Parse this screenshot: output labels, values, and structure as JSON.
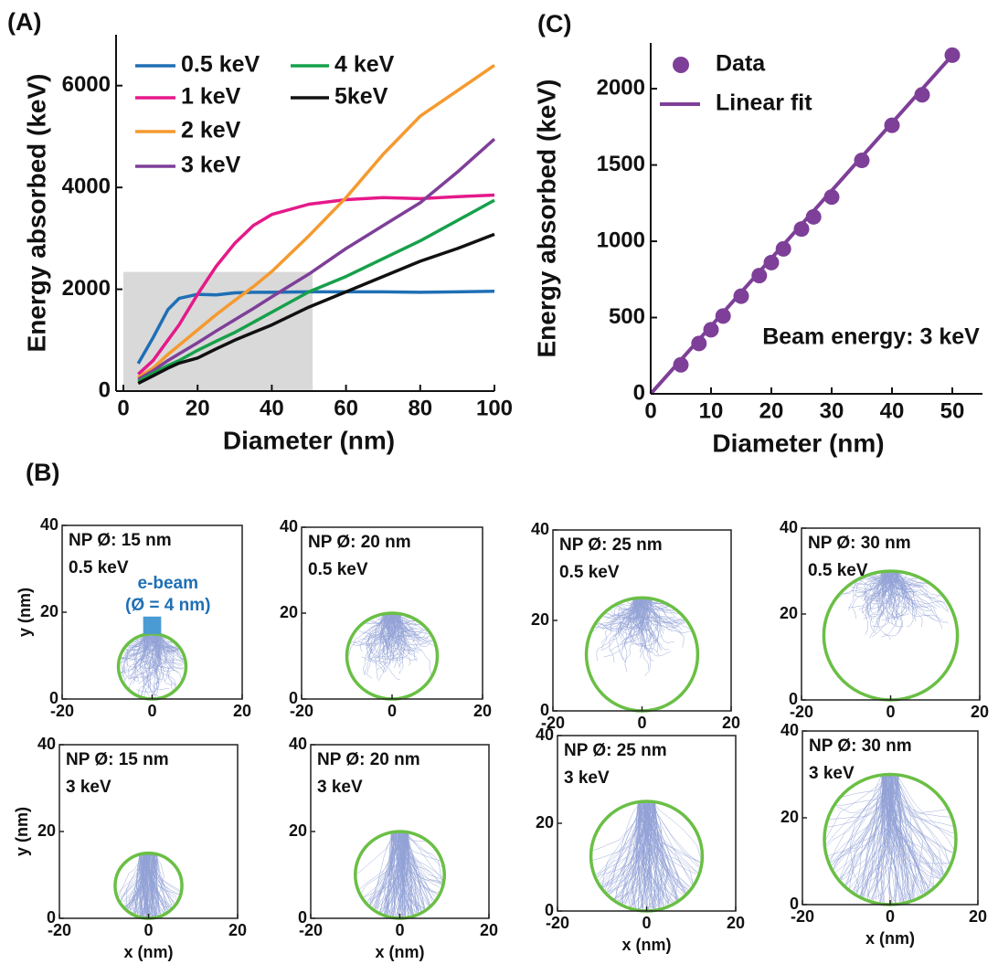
{
  "chart_data": [
    {
      "type": "line",
      "label": "(A)",
      "xlabel": "Diameter (nm)",
      "ylabel": "Energy absorbed (keV)",
      "xlim": [
        0,
        100
      ],
      "ylim": [
        0,
        7000
      ],
      "xticks": [
        0,
        20,
        40,
        60,
        80,
        100
      ],
      "yticks": [
        0,
        2000,
        4000,
        6000
      ],
      "legend": "upper left",
      "highlight": {
        "xlim": [
          0,
          51
        ],
        "ylim": [
          0,
          2340
        ],
        "color": "#d9d9d9"
      },
      "x": [
        4,
        8,
        12,
        15,
        20,
        25,
        30,
        35,
        40,
        50,
        60,
        70,
        80,
        90,
        100
      ],
      "series": [
        {
          "name": "0.5 keV",
          "color": "#1f6fb5",
          "values": [
            540,
            1050,
            1600,
            1820,
            1900,
            1890,
            1930,
            1940,
            1940,
            1950,
            1950,
            1950,
            1940,
            1950,
            1960
          ]
        },
        {
          "name": "1 keV",
          "color": "#e5198a",
          "values": [
            330,
            600,
            1000,
            1300,
            1900,
            2450,
            2900,
            3250,
            3470,
            3670,
            3760,
            3800,
            3780,
            3820,
            3850
          ]
        },
        {
          "name": "2 keV",
          "color": "#f59a2f",
          "values": [
            270,
            450,
            720,
            900,
            1200,
            1500,
            1780,
            2050,
            2350,
            3050,
            3800,
            4650,
            5400,
            5900,
            6400
          ]
        },
        {
          "name": "3 keV",
          "color": "#7e3f98",
          "values": [
            230,
            400,
            600,
            730,
            950,
            1180,
            1400,
            1620,
            1850,
            2300,
            2800,
            3250,
            3700,
            4300,
            4950
          ]
        },
        {
          "name": "4 keV",
          "color": "#17a04b",
          "values": [
            190,
            350,
            500,
            600,
            800,
            980,
            1150,
            1350,
            1550,
            1950,
            2250,
            2600,
            2950,
            3350,
            3750
          ]
        },
        {
          "name": "5keV",
          "color": "#111111",
          "values": [
            150,
            300,
            450,
            550,
            650,
            830,
            1000,
            1150,
            1300,
            1650,
            1950,
            2250,
            2550,
            2800,
            3080
          ]
        }
      ]
    },
    {
      "type": "scatter",
      "label": "(C)",
      "xlabel": "Diameter (nm)",
      "ylabel": "Energy absorbed (keV)",
      "xlim": [
        0,
        55
      ],
      "ylim": [
        0,
        2300
      ],
      "xticks": [
        0,
        10,
        20,
        30,
        40,
        50
      ],
      "yticks": [
        0,
        500,
        1000,
        1500,
        2000
      ],
      "legend": "upper left",
      "name": "Data",
      "color": "#7e3f98",
      "x": [
        5,
        8,
        10,
        12,
        15,
        18,
        20,
        22,
        25,
        27,
        30,
        35,
        40,
        45,
        50
      ],
      "values": [
        190,
        330,
        420,
        510,
        640,
        775,
        860,
        950,
        1080,
        1160,
        1290,
        1530,
        1760,
        1960,
        2220
      ],
      "fit": {
        "name": "Linear fit",
        "x": [
          0,
          50
        ],
        "values": [
          0,
          2220
        ]
      },
      "annotation": "Beam energy: 3 keV"
    },
    {
      "type": "trajectory",
      "label": "(B)",
      "annotation": [
        "NP Ø: 15 nm",
        "0.5 keV"
      ],
      "ylabel": "y (nm)",
      "xlim": [
        -20,
        20
      ],
      "ylim": [
        0,
        40
      ],
      "xticks": [
        -20,
        0,
        20
      ],
      "yticks": [
        0,
        20,
        40
      ],
      "circle": {
        "center": [
          0,
          7.5
        ],
        "radius": 7.5,
        "color": "#6abf45"
      },
      "beam": {
        "xlim": [
          -2,
          2
        ],
        "ylim": [
          15,
          19
        ],
        "color": "#4a9ad4",
        "label": [
          "e-beam",
          "(Ø = 4 nm)"
        ]
      }
    },
    {
      "type": "trajectory",
      "annotation": [
        "NP Ø: 20 nm",
        "0.5 keV"
      ],
      "xlim": [
        -20,
        20
      ],
      "ylim": [
        0,
        40
      ],
      "xticks": [
        -20,
        0,
        20
      ],
      "yticks": [
        0,
        20,
        40
      ],
      "circle": {
        "center": [
          0,
          10
        ],
        "radius": 10,
        "color": "#6abf45"
      }
    },
    {
      "type": "trajectory",
      "annotation": [
        "NP Ø: 25 nm",
        "0.5 keV"
      ],
      "xlim": [
        -20,
        20
      ],
      "ylim": [
        0,
        40
      ],
      "xticks": [
        -20,
        0,
        20
      ],
      "yticks": [
        0,
        20,
        40
      ],
      "circle": {
        "center": [
          0,
          12.5
        ],
        "radius": 12.5,
        "color": "#6abf45"
      }
    },
    {
      "type": "trajectory",
      "annotation": [
        "NP Ø: 30 nm",
        "0.5 keV"
      ],
      "xlim": [
        -20,
        20
      ],
      "ylim": [
        0,
        40
      ],
      "xticks": [
        -20,
        0,
        20
      ],
      "yticks": [
        0,
        20,
        40
      ],
      "circle": {
        "center": [
          0,
          15
        ],
        "radius": 15,
        "color": "#6abf45"
      }
    },
    {
      "type": "trajectory",
      "annotation": [
        "NP Ø: 15 nm",
        "3 keV"
      ],
      "ylabel": "y (nm)",
      "xlabel": "x (nm)",
      "xlim": [
        -20,
        20
      ],
      "ylim": [
        0,
        40
      ],
      "xticks": [
        -20,
        0,
        20
      ],
      "yticks": [
        0,
        20,
        40
      ],
      "circle": {
        "center": [
          0,
          7.5
        ],
        "radius": 7.5,
        "color": "#6abf45"
      }
    },
    {
      "type": "trajectory",
      "annotation": [
        "NP Ø: 20 nm",
        "3 keV"
      ],
      "xlabel": "x (nm)",
      "xlim": [
        -20,
        20
      ],
      "ylim": [
        0,
        40
      ],
      "xticks": [
        -20,
        0,
        20
      ],
      "yticks": [
        0,
        20,
        40
      ],
      "circle": {
        "center": [
          0,
          10
        ],
        "radius": 10,
        "color": "#6abf45"
      }
    },
    {
      "type": "trajectory",
      "annotation": [
        "NP Ø: 25 nm",
        "3 keV"
      ],
      "xlabel": "x (nm)",
      "xlim": [
        -20,
        20
      ],
      "ylim": [
        0,
        40
      ],
      "xticks": [
        -20,
        0,
        20
      ],
      "yticks": [
        0,
        20,
        40
      ],
      "circle": {
        "center": [
          0,
          12.5
        ],
        "radius": 12.5,
        "color": "#6abf45"
      }
    },
    {
      "type": "trajectory",
      "annotation": [
        "NP Ø: 30 nm",
        "3 keV"
      ],
      "xlabel": "x (nm)",
      "xlim": [
        -20,
        20
      ],
      "ylim": [
        0,
        40
      ],
      "xticks": [
        -20,
        0,
        20
      ],
      "yticks": [
        0,
        20,
        40
      ],
      "circle": {
        "center": [
          0,
          15
        ],
        "radius": 15,
        "color": "#6abf45"
      }
    }
  ]
}
